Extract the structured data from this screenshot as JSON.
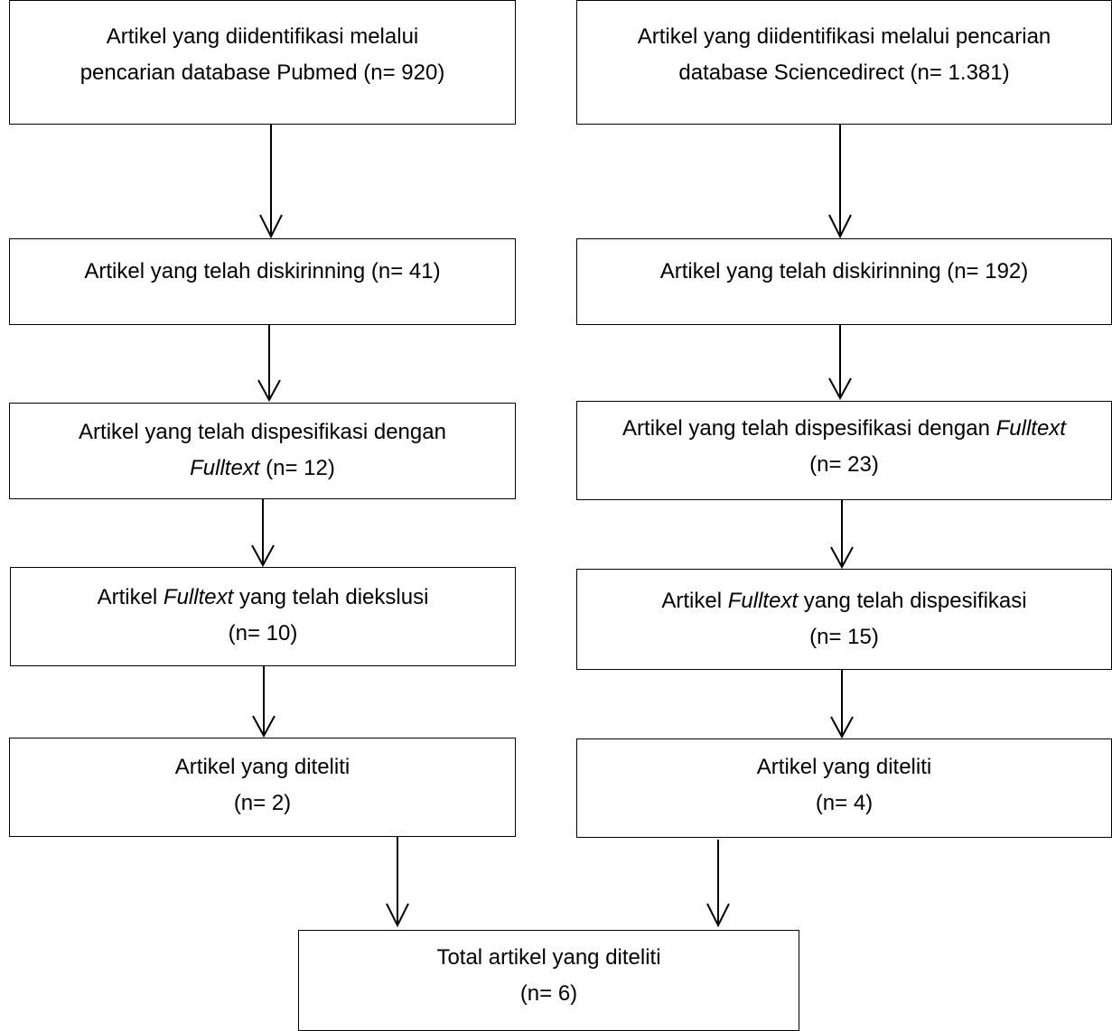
{
  "left_column": {
    "identified": {
      "line1": "Artikel yang diidentifikasi melalui",
      "line2": "pencarian database Pubmed (n= 920)"
    },
    "screened": {
      "line1": "Artikel yang telah diskirinning (n= 41)"
    },
    "specified": {
      "line1": "Artikel yang telah dispesifikasi dengan",
      "line2_italic": "Fulltext",
      "line2_rest": " (n= 12)"
    },
    "excluded": {
      "line1_pre": "Artikel ",
      "line1_italic": "Fulltext",
      "line1_post": " yang telah diekslusi",
      "line2": "(n= 10)"
    },
    "studied": {
      "line1": "Artikel yang diteliti",
      "line2": "(n= 2)"
    }
  },
  "right_column": {
    "identified": {
      "line1": "Artikel yang diidentifikasi melalui pencarian",
      "line2": "database Sciencedirect (n= 1.381)"
    },
    "screened": {
      "line1": "Artikel yang telah diskirinning (n= 192)"
    },
    "specified": {
      "line1_pre": "Artikel yang telah dispesifikasi dengan ",
      "line1_italic": "Fulltext",
      "line2": "(n= 23)"
    },
    "fulltext_specified": {
      "line1_pre": "Artikel ",
      "line1_italic": "Fulltext",
      "line1_post": " yang telah dispesifikasi",
      "line2": "(n= 15)"
    },
    "studied": {
      "line1": "Artikel yang diteliti",
      "line2": "(n= 4)"
    }
  },
  "total": {
    "line1": "Total artikel yang diteliti",
    "line2": "(n= 6)"
  }
}
